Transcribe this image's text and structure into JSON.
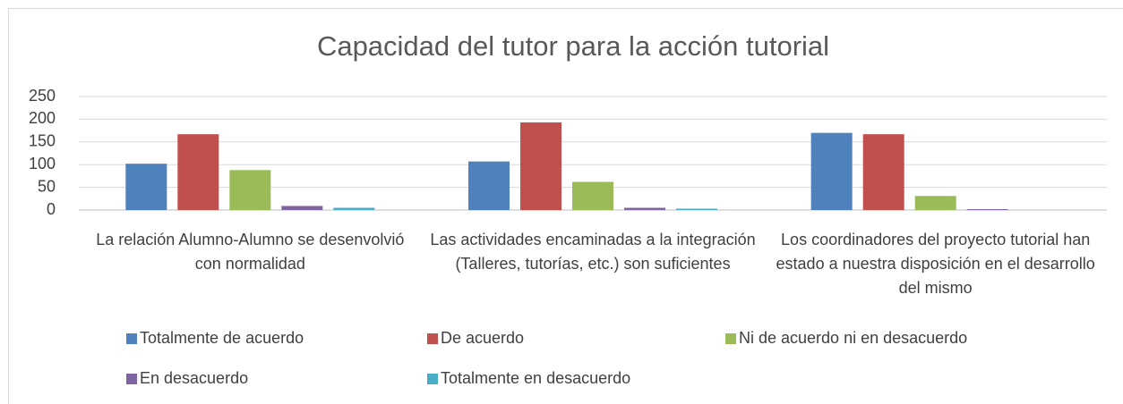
{
  "chart_data": {
    "type": "bar",
    "title": "Capacidad del tutor para la acción tutorial",
    "categories": [
      "La relación Alumno-Alumno se desenvolvió con normalidad",
      "Las actividades encaminadas a la integración (Talleres, tutorías, etc.) son suficientes",
      "Los coordinadores del proyecto tutorial han estado a nuestra disposición en el desarrollo del mismo"
    ],
    "series": [
      {
        "name": "Totalmente de acuerdo",
        "color": "#4f81bd",
        "values": [
          102,
          107,
          170
        ]
      },
      {
        "name": "De acuerdo",
        "color": "#c0504d",
        "values": [
          167,
          193,
          167
        ]
      },
      {
        "name": "Ni de acuerdo ni en desacuerdo",
        "color": "#9bbb59",
        "values": [
          88,
          62,
          31
        ]
      },
      {
        "name": "En desacuerdo",
        "color": "#8064a2",
        "values": [
          9,
          5,
          2
        ]
      },
      {
        "name": "Totalmente en desacuerdo",
        "color": "#4bacc6",
        "values": [
          5,
          3,
          0
        ]
      }
    ],
    "ylim": [
      0,
      250
    ],
    "yticks": [
      0,
      50,
      100,
      150,
      200,
      250
    ],
    "grid": true,
    "legend": "bottom"
  }
}
